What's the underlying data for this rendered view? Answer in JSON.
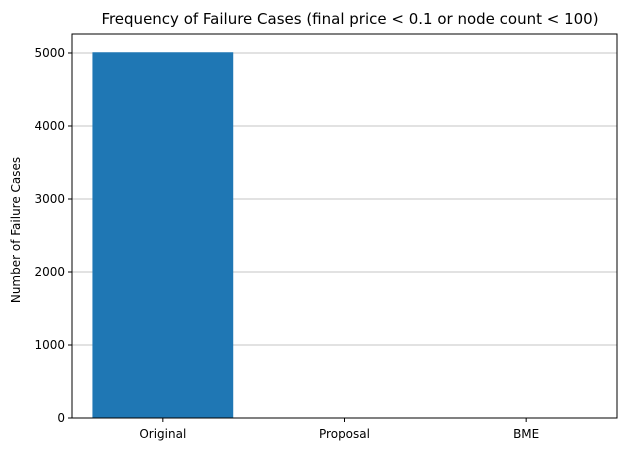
{
  "chart_data": {
    "type": "bar",
    "title": "Frequency of Failure Cases (final price < 0.1 or node count < 100)",
    "xlabel": "",
    "ylabel": "Number of Failure Cases",
    "categories": [
      "Original",
      "Proposal",
      "BME"
    ],
    "values": [
      5010,
      0,
      0
    ],
    "ylim": [
      0,
      5260
    ],
    "yticks": [
      0,
      1000,
      2000,
      3000,
      4000,
      5000
    ],
    "grid": "y-major",
    "bar_color": "#1f77b4"
  }
}
